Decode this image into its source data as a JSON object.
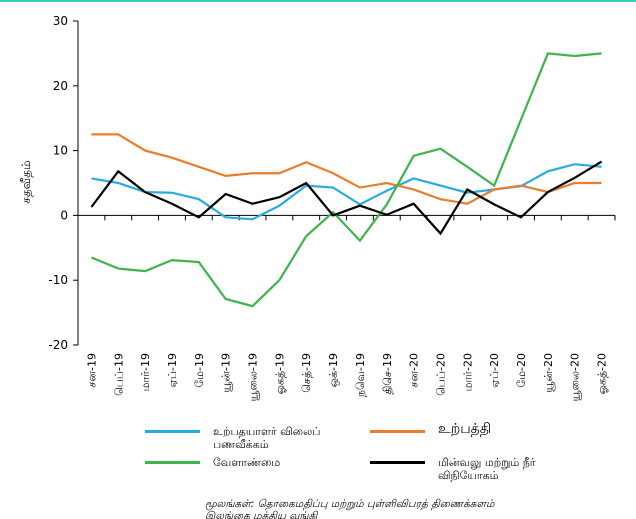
{
  "chart_data": {
    "type": "line",
    "y_label": "சதவீதம்",
    "categories": [
      "சன-19",
      "பெப்-19",
      "மார்-19",
      "ஏப்-19",
      "மே-19",
      "யூன்-19",
      "யூலை-19",
      "ஓகத்-19",
      "செத்-19",
      "ஒக்-19",
      "நவெ-19",
      "திசெ-19",
      "சன-20",
      "பெப்-20",
      "மார்-20",
      "ஏப்-20",
      "மே-20",
      "யூன்-20",
      "யூலை-20",
      "ஓகத்-20"
    ],
    "series": [
      {
        "name": "உற்பதயாளர் விலைப்\nபணவீக்கம்",
        "color": "#29abe2",
        "values": [
          5.7,
          5.0,
          3.6,
          3.5,
          2.5,
          -0.3,
          -0.6,
          1.5,
          4.6,
          4.3,
          1.7,
          3.8,
          5.7,
          4.6,
          3.5,
          4.0,
          4.5,
          6.8,
          7.9,
          7.5
        ]
      },
      {
        "name": "உற்பத்தி",
        "color": "#e87d2d",
        "values": [
          12.5,
          12.5,
          10.0,
          8.9,
          7.5,
          6.1,
          6.5,
          6.5,
          8.2,
          6.5,
          4.3,
          5.0,
          4.0,
          2.5,
          1.8,
          4.0,
          4.6,
          3.6,
          5.0,
          5.0
        ]
      },
      {
        "name": "வேளாண்மை",
        "color": "#3cb54a",
        "values": [
          -6.5,
          -8.2,
          -8.6,
          -6.9,
          -7.2,
          -12.9,
          -14.0,
          -10.0,
          -3.2,
          0.5,
          -3.9,
          1.7,
          9.2,
          10.3,
          7.5,
          4.6,
          14.8,
          25.0,
          24.6,
          25.0
        ]
      },
      {
        "name": "மின்வலு மற்றும் நீர்\nவிநியோகம்",
        "color": "#000000",
        "values": [
          1.3,
          6.8,
          3.6,
          1.8,
          -0.3,
          3.3,
          1.8,
          2.8,
          5.0,
          0.0,
          1.5,
          0.1,
          1.8,
          -2.8,
          4.0,
          1.7,
          -0.3,
          3.6,
          5.8,
          8.3
        ]
      }
    ],
    "ylim": [
      -20,
      30
    ],
    "yticks": [
      -20,
      -10,
      0,
      10,
      20,
      30
    ],
    "grid": false,
    "source": "மூலங்கள்: தொகைமதிப்பு மற்றும் புள்ளிவிபரத் திணைக்களம்\nஇலங்கை மத்திய வங்கி"
  }
}
